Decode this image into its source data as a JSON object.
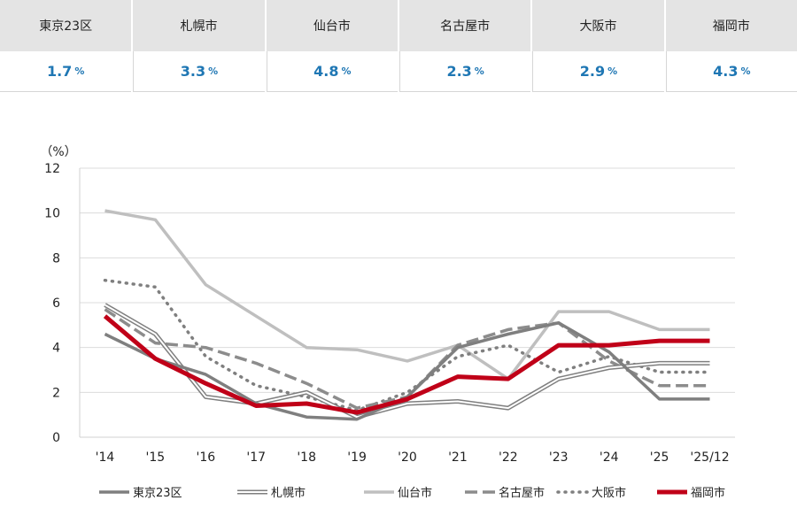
{
  "summary": [
    {
      "name": "東京23区",
      "value": "1.7",
      "unit": "%"
    },
    {
      "name": "札幌市",
      "value": "3.3",
      "unit": "%"
    },
    {
      "name": "仙台市",
      "value": "4.8",
      "unit": "%"
    },
    {
      "name": "名古屋市",
      "value": "2.3",
      "unit": "%"
    },
    {
      "name": "大阪市",
      "value": "2.9",
      "unit": "%"
    },
    {
      "name": "福岡市",
      "value": "4.3",
      "unit": "%"
    }
  ],
  "chart_data": {
    "type": "line",
    "ylabel": "（%）",
    "ylim": [
      0,
      12
    ],
    "yticks": [
      0,
      2,
      4,
      6,
      8,
      10,
      12
    ],
    "grid": true,
    "legend": "bottom",
    "categories": [
      "'14",
      "'15",
      "'16",
      "'17",
      "'18",
      "'19",
      "'20",
      "'21",
      "'22",
      "'23",
      "'24",
      "'25",
      "'25/12"
    ],
    "series": [
      {
        "name": "東京23区",
        "color": "#7f7f7f",
        "style": "solid",
        "values": [
          4.6,
          3.5,
          2.8,
          1.5,
          0.9,
          0.8,
          1.8,
          4.0,
          4.6,
          5.1,
          3.8,
          1.7,
          1.7
        ]
      },
      {
        "name": "札幌市",
        "color": "#7f7f7f",
        "style": "double",
        "values": [
          5.9,
          4.6,
          1.8,
          1.5,
          2.0,
          0.9,
          1.5,
          1.6,
          1.3,
          2.6,
          3.1,
          3.3,
          3.3
        ]
      },
      {
        "name": "仙台市",
        "color": "#bfbfbf",
        "style": "solid",
        "values": [
          10.1,
          9.7,
          6.8,
          5.4,
          4.0,
          3.9,
          3.4,
          4.1,
          2.6,
          5.6,
          5.6,
          4.8,
          4.8
        ]
      },
      {
        "name": "名古屋市",
        "color": "#8c8c8c",
        "style": "dashed",
        "values": [
          5.7,
          4.2,
          4.0,
          3.3,
          2.4,
          1.3,
          1.8,
          4.1,
          4.8,
          5.1,
          3.4,
          2.3,
          2.3
        ]
      },
      {
        "name": "大阪市",
        "color": "#7f7f7f",
        "style": "dotted",
        "values": [
          7.0,
          6.7,
          3.6,
          2.3,
          1.8,
          1.2,
          2.0,
          3.6,
          4.1,
          2.9,
          3.6,
          2.9,
          2.9
        ]
      },
      {
        "name": "福岡市",
        "color": "#c00018",
        "style": "solid-thick",
        "values": [
          5.4,
          3.5,
          2.4,
          1.4,
          1.5,
          1.1,
          1.7,
          2.7,
          2.6,
          4.1,
          4.1,
          4.3,
          4.3
        ]
      }
    ]
  }
}
